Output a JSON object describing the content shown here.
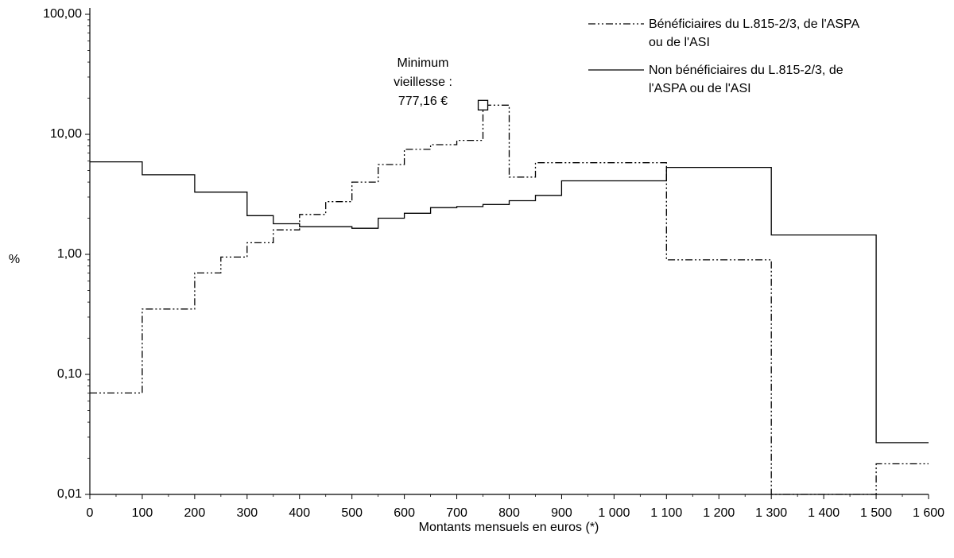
{
  "chart_data": {
    "type": "line",
    "title": "",
    "xlabel": "Montants mensuels en euros (*)",
    "ylabel": "%",
    "y_scale": "log",
    "xlim": [
      0,
      1600
    ],
    "ylim": [
      0.01,
      100
    ],
    "grid": false,
    "legend_position": "top-right",
    "x_ticks": [
      0,
      100,
      200,
      300,
      400,
      500,
      600,
      700,
      800,
      900,
      1000,
      1100,
      1200,
      1300,
      1400,
      1500,
      1600
    ],
    "x_tick_labels": [
      "0",
      "100",
      "200",
      "300",
      "400",
      "500",
      "600",
      "700",
      "800",
      "900",
      "1 000",
      "1 100",
      "1 200",
      "1 300",
      "1 400",
      "1 500",
      "1 600"
    ],
    "y_ticks": [
      0.01,
      0.1,
      1,
      10,
      100
    ],
    "y_tick_labels": [
      "0,01",
      "0,10",
      "1,00",
      "10,00",
      "100,00"
    ],
    "series": [
      {
        "name": "Bénéficiaires du L.815-2/3, de l'ASPA ou de l'ASI",
        "style": "dash-dot-dot",
        "bins": [
          [
            0,
            100,
            0.07
          ],
          [
            100,
            200,
            0.35
          ],
          [
            200,
            250,
            0.7
          ],
          [
            250,
            300,
            0.95
          ],
          [
            300,
            350,
            1.25
          ],
          [
            350,
            400,
            1.6
          ],
          [
            400,
            450,
            2.15
          ],
          [
            450,
            500,
            2.75
          ],
          [
            500,
            550,
            4.0
          ],
          [
            550,
            600,
            5.6
          ],
          [
            600,
            650,
            7.5
          ],
          [
            650,
            700,
            8.2
          ],
          [
            700,
            750,
            8.9
          ],
          [
            750,
            800,
            17.5
          ],
          [
            800,
            850,
            4.4
          ],
          [
            850,
            1100,
            5.8
          ],
          [
            1100,
            1300,
            0.9
          ],
          [
            1300,
            1500,
            0.01
          ],
          [
            1500,
            1600,
            0.018
          ]
        ]
      },
      {
        "name": "Non bénéficiaires du L.815-2/3, de l'ASPA ou de l'ASI",
        "style": "solid",
        "bins": [
          [
            0,
            100,
            5.9
          ],
          [
            100,
            200,
            4.6
          ],
          [
            200,
            300,
            3.3
          ],
          [
            300,
            350,
            2.1
          ],
          [
            350,
            400,
            1.8
          ],
          [
            400,
            500,
            1.7
          ],
          [
            500,
            550,
            1.65
          ],
          [
            550,
            600,
            2.0
          ],
          [
            600,
            650,
            2.2
          ],
          [
            650,
            700,
            2.45
          ],
          [
            700,
            750,
            2.5
          ],
          [
            750,
            800,
            2.6
          ],
          [
            800,
            850,
            2.8
          ],
          [
            850,
            900,
            3.1
          ],
          [
            900,
            1100,
            4.1
          ],
          [
            1100,
            1300,
            5.3
          ],
          [
            1300,
            1500,
            1.45
          ],
          [
            1500,
            1600,
            0.027
          ]
        ]
      }
    ],
    "annotation": {
      "lines": [
        "Minimum",
        "vieillesse :",
        "777,16 €"
      ],
      "x": 750,
      "y": 17.5,
      "marker": "square"
    }
  }
}
